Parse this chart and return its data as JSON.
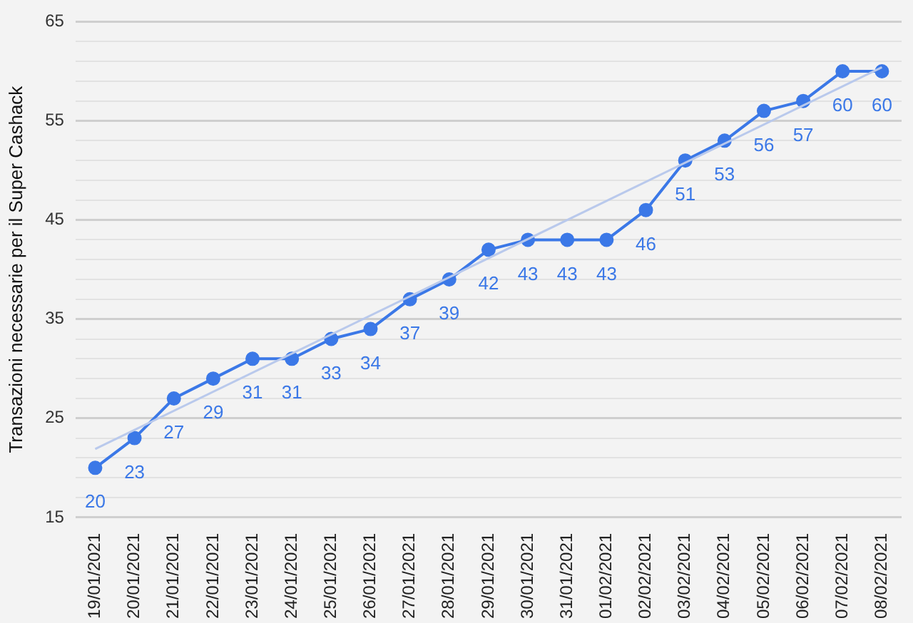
{
  "chart_data": {
    "type": "line",
    "ylabel": "Transazioni necessarie per il Super Cashack",
    "categories": [
      "19/01/2021",
      "20/01/2021",
      "21/01/2021",
      "22/01/2021",
      "23/01/2021",
      "24/01/2021",
      "25/01/2021",
      "26/01/2021",
      "27/01/2021",
      "28/01/2021",
      "29/01/2021",
      "30/01/2021",
      "31/01/2021",
      "01/02/2021",
      "02/02/2021",
      "03/02/2021",
      "04/02/2021",
      "05/02/2021",
      "06/02/2021",
      "07/02/2021",
      "08/02/2021"
    ],
    "series": [
      {
        "color": "#3b78e7",
        "values": [
          20,
          23,
          27,
          29,
          31,
          31,
          33,
          34,
          37,
          39,
          42,
          43,
          43,
          43,
          46,
          51,
          53,
          56,
          57,
          60,
          60
        ],
        "value_labels": [
          "20",
          "23",
          "27",
          "29",
          "31",
          "31",
          "33",
          "34",
          "37",
          "39",
          "42",
          "43",
          "43",
          "43",
          "46",
          "51",
          "53",
          "56",
          "57",
          "60",
          "60"
        ]
      },
      {
        "color": "#b9c9ec",
        "x": [
          "19/01/2021",
          "08/02/2021"
        ],
        "values": [
          21.9,
          60.4
        ],
        "marker": "none"
      }
    ],
    "ylim": [
      15,
      65
    ],
    "yticks": [
      15,
      {
        "value": 17,
        "label": null
      },
      {
        "value": 19,
        "label": null
      },
      {
        "value": 21,
        "label": null
      },
      {
        "value": 23,
        "label": null
      },
      25,
      {
        "value": 27,
        "label": null
      },
      {
        "value": 29,
        "label": null
      },
      {
        "value": 31,
        "label": null
      },
      {
        "value": 33,
        "label": null
      },
      35,
      {
        "value": 37,
        "label": null
      },
      {
        "value": 39,
        "label": null
      },
      {
        "value": 41,
        "label": null
      },
      {
        "value": 43,
        "label": null
      },
      45,
      {
        "value": 47,
        "label": null
      },
      {
        "value": 49,
        "label": null
      },
      {
        "value": 51,
        "label": null
      },
      {
        "value": 53,
        "label": null
      },
      55,
      {
        "value": 57,
        "label": null
      },
      {
        "value": 59,
        "label": null
      },
      {
        "value": 61,
        "label": null
      },
      {
        "value": 63,
        "label": null
      },
      65
    ],
    "grid": "y",
    "marker": "circle",
    "legend": false
  }
}
